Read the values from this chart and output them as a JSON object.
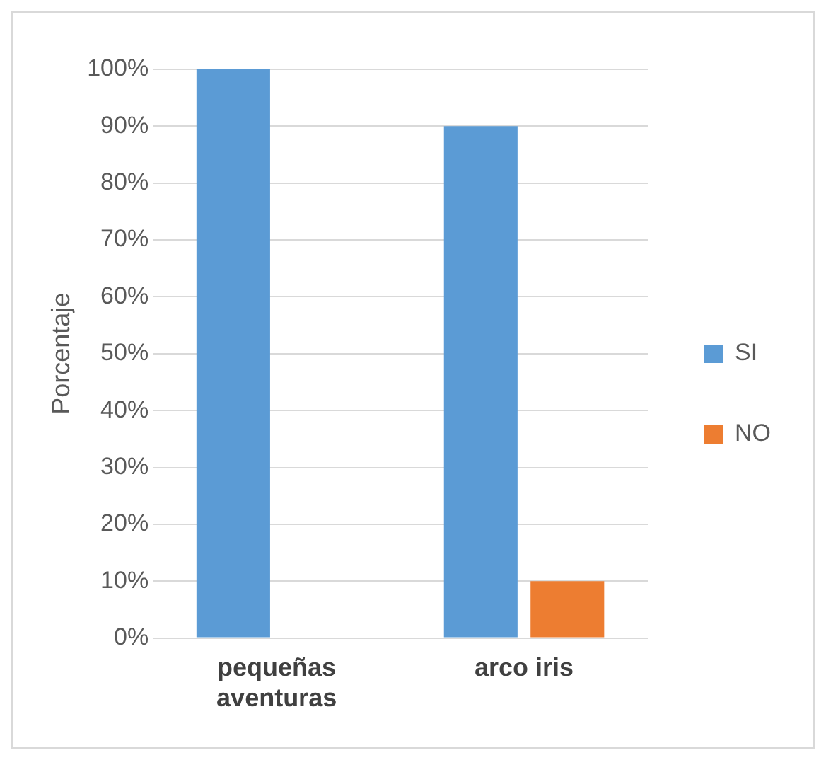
{
  "chart_data": {
    "type": "bar",
    "ylabel": "Porcentaje",
    "categories": [
      "pequeñas aventuras",
      "arco iris"
    ],
    "series": [
      {
        "name": "SI",
        "color": "#5b9bd5",
        "values": [
          100,
          90
        ]
      },
      {
        "name": "NO",
        "color": "#ed7d31",
        "values": [
          0,
          10
        ]
      }
    ],
    "ylim": [
      0,
      100
    ],
    "yticks": [
      {
        "value": 0,
        "label": "0%"
      },
      {
        "value": 10,
        "label": "10%"
      },
      {
        "value": 20,
        "label": "20%"
      },
      {
        "value": 30,
        "label": "30%"
      },
      {
        "value": 40,
        "label": "40%"
      },
      {
        "value": 50,
        "label": "50%"
      },
      {
        "value": 60,
        "label": "60%"
      },
      {
        "value": 70,
        "label": "70%"
      },
      {
        "value": 80,
        "label": "80%"
      },
      {
        "value": 90,
        "label": "90%"
      },
      {
        "value": 100,
        "label": "100%"
      }
    ],
    "grid": "y",
    "legend": "right"
  }
}
